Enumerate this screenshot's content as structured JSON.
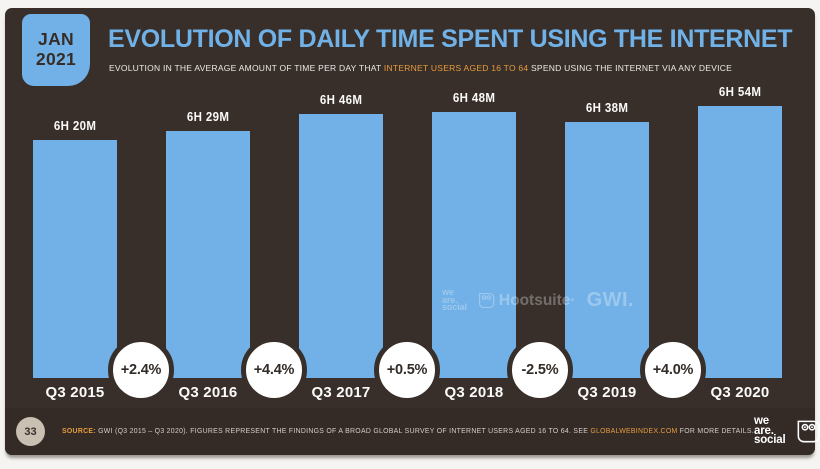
{
  "header": {
    "date_line1": "JAN",
    "date_line2": "2021",
    "title": "EVOLUTION OF DAILY TIME SPENT USING THE INTERNET",
    "subtitle_pre": "EVOLUTION IN THE AVERAGE AMOUNT OF TIME PER DAY THAT ",
    "subtitle_highlight": "INTERNET USERS AGED 16 TO 64",
    "subtitle_post": " SPEND USING THE INTERNET VIA ANY DEVICE"
  },
  "chart_data": {
    "type": "bar",
    "title": "EVOLUTION OF DAILY TIME SPENT USING THE INTERNET",
    "subtitle": "EVOLUTION IN THE AVERAGE AMOUNT OF TIME PER DAY THAT INTERNET USERS AGED 16 TO 64 SPEND USING THE INTERNET VIA ANY DEVICE",
    "categories": [
      "Q3 2015",
      "Q3 2016",
      "Q3 2017",
      "Q3 2018",
      "Q3 2019",
      "Q3 2020"
    ],
    "value_labels": [
      "6H 20M",
      "6H 29M",
      "6H 46M",
      "6H 48M",
      "6H 38M",
      "6H 54M"
    ],
    "values_minutes": [
      380,
      389,
      406,
      408,
      398,
      414
    ],
    "yoy_change_labels": [
      "+2.4%",
      "+4.4%",
      "+0.5%",
      "-2.5%",
      "+4.0%"
    ],
    "xlabel": "",
    "ylabel": "",
    "layout_hints": {
      "grid": false,
      "legend": false,
      "value_labels_above_bars": true,
      "change_badges_between_bars": true
    },
    "bar_color": "#71b1e7"
  },
  "watermark": {
    "was_line1": "we",
    "was_line2": "are.",
    "was_line3": "social",
    "hootsuite": "Hootsuite·",
    "gwi": "GWI."
  },
  "footer": {
    "page_number": "33",
    "source_label": "SOURCE:",
    "source_pre": " GWI (Q3 2015 – Q3 2020). FIGURES REPRESENT THE FINDINGS OF A BROAD GLOBAL SURVEY OF INTERNET USERS AGED 16 TO 64. SEE ",
    "source_link": "GLOBALWEBINDEX.COM",
    "source_post": " FOR MORE DETAILS.",
    "was_line1": "we",
    "was_line2": "are.",
    "was_line3": "social",
    "hootsuite": "Hootsuite",
    "hootsuite_reg": "®"
  },
  "colors": {
    "accent_blue": "#71b1e7",
    "highlight_orange": "#e69c3e",
    "slide_background": "#382f2a",
    "footer_background": "#342b27",
    "page_circle_beige": "#c9c0b2"
  }
}
